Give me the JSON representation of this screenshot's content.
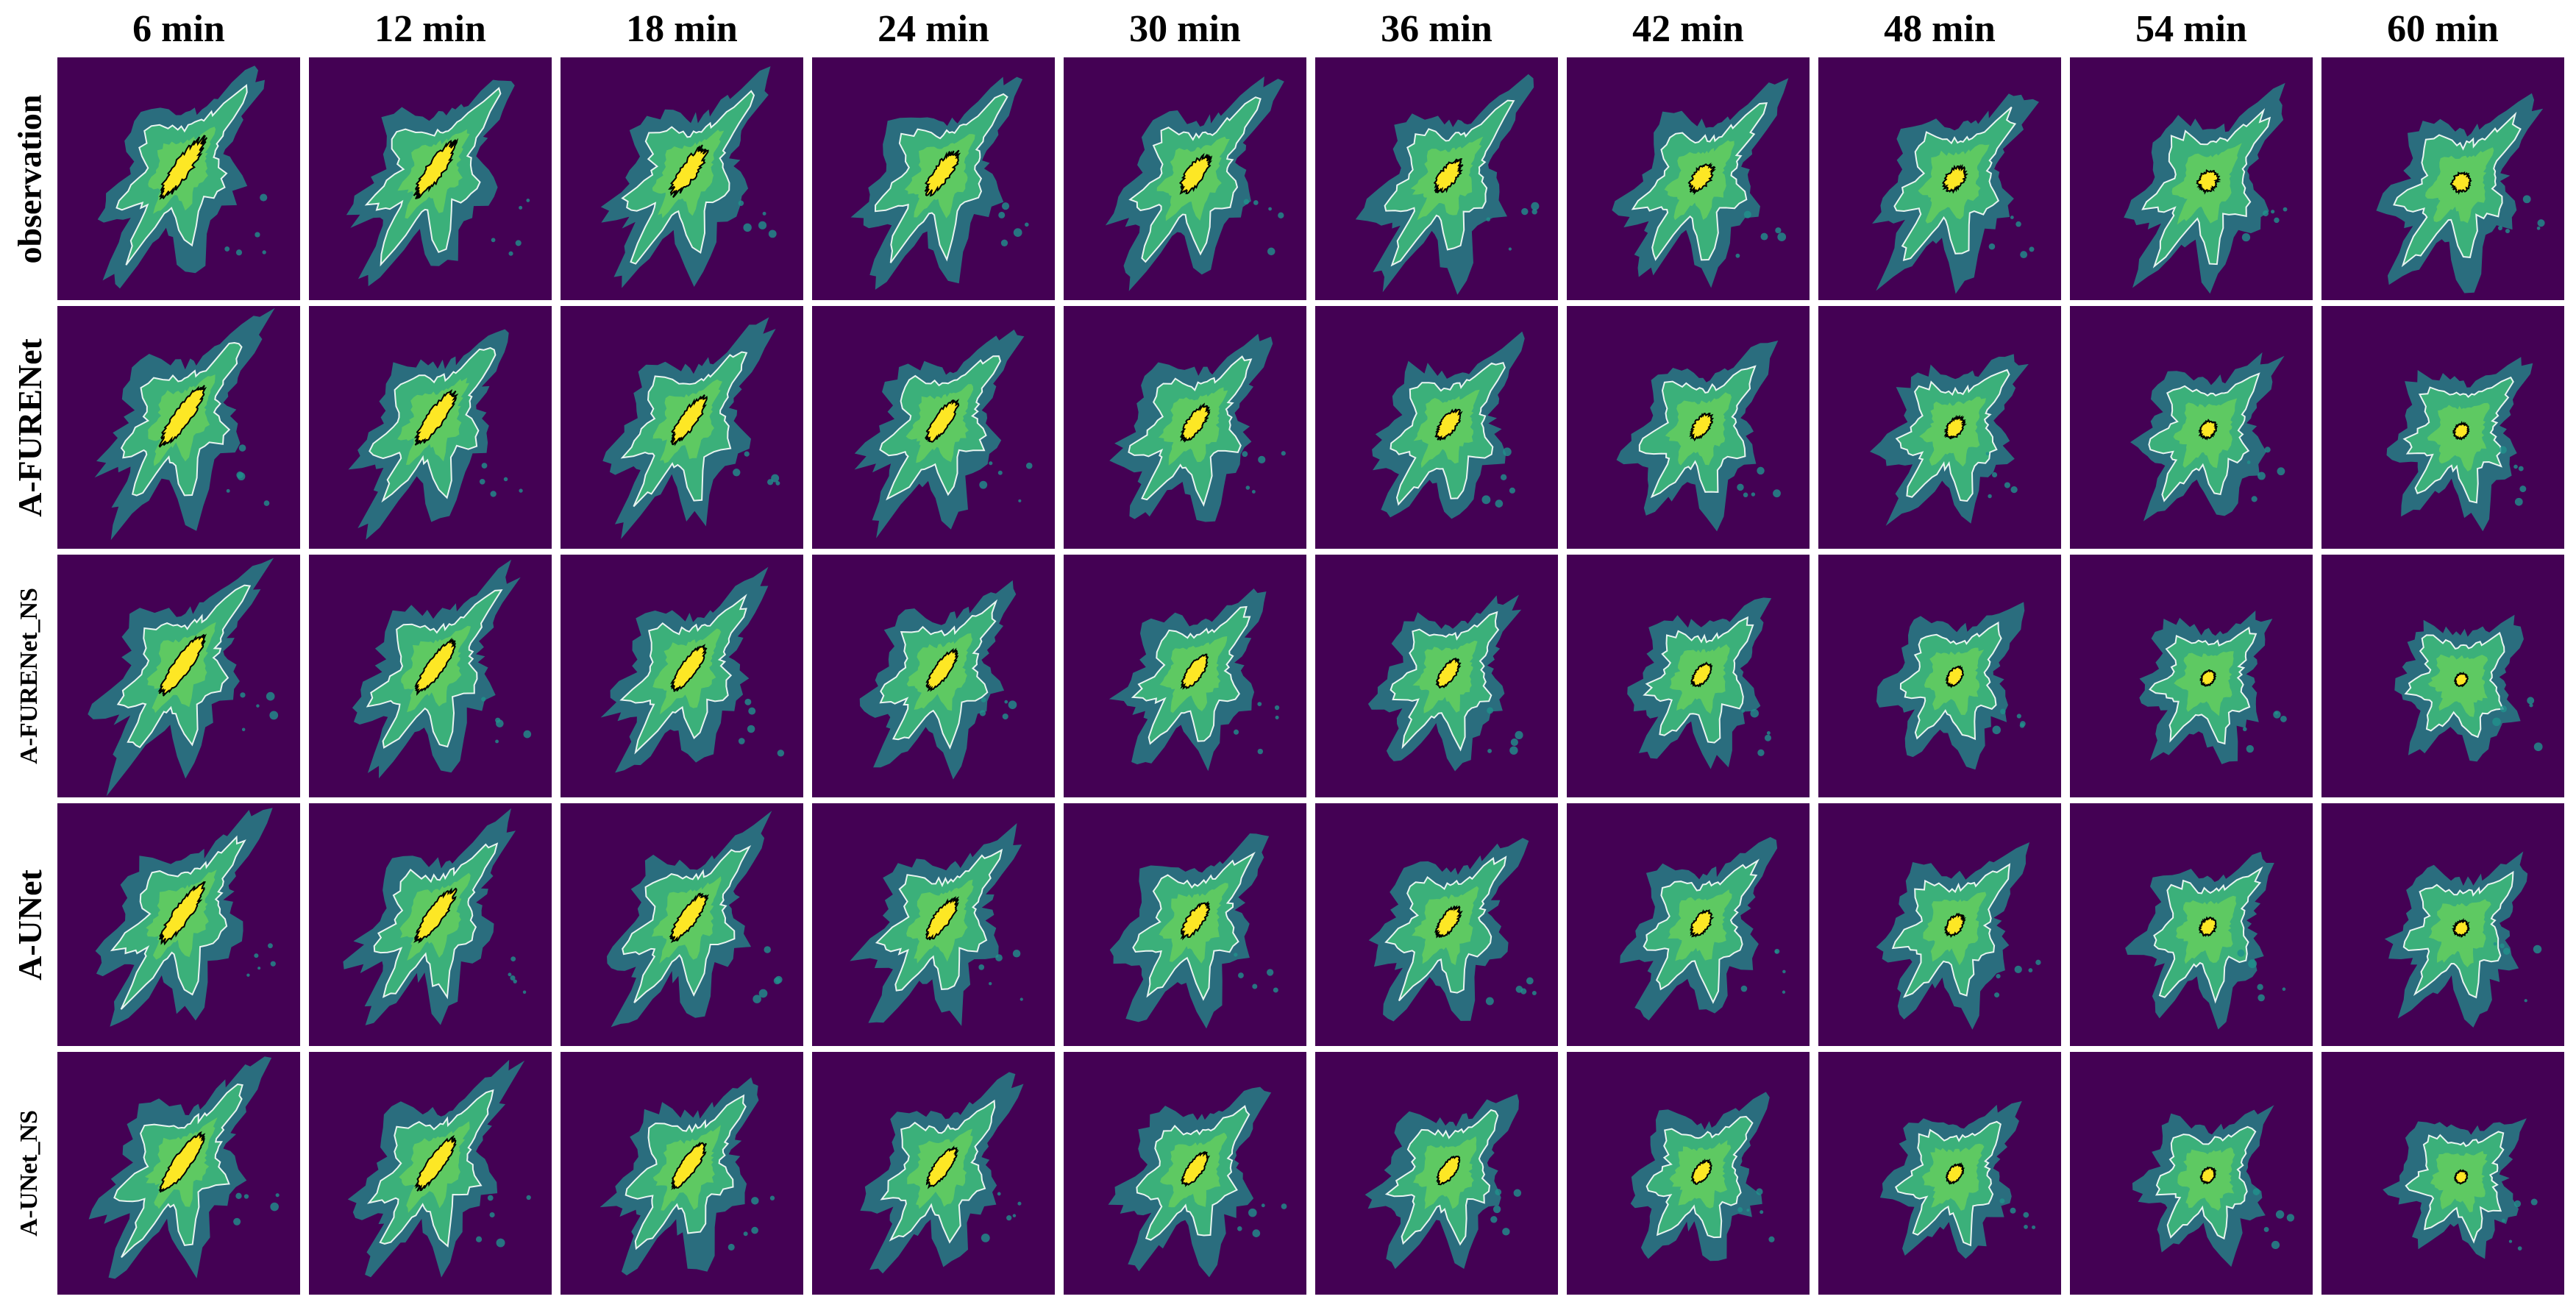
{
  "figure": {
    "columns": [
      "6 min",
      "12 min",
      "18 min",
      "24 min",
      "30 min",
      "36 min",
      "42 min",
      "48 min",
      "54 min",
      "60 min"
    ],
    "rows": [
      "observation",
      "A-FURENet",
      "A-FURENet_NS",
      "A-UNet",
      "A-UNet_NS"
    ],
    "colors": {
      "background": "#440154",
      "low": "#21918c",
      "mid": "#5ec962",
      "high": "#fde725",
      "contour_outer": "#e8f4f0",
      "contour_core": "#000000"
    }
  }
}
